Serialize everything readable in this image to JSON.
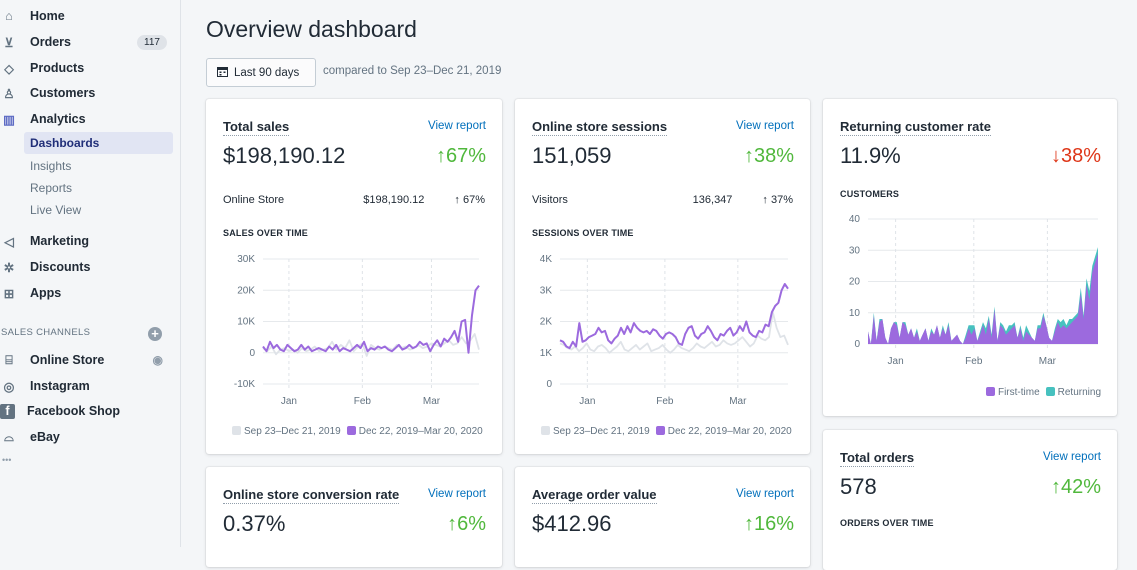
{
  "sidebar": {
    "items": [
      {
        "label": "Home",
        "icon": "home-icon"
      },
      {
        "label": "Orders",
        "icon": "orders-icon",
        "badge": "117"
      },
      {
        "label": "Products",
        "icon": "tag-icon"
      },
      {
        "label": "Customers",
        "icon": "person-icon"
      },
      {
        "label": "Analytics",
        "icon": "bar-chart-icon"
      }
    ],
    "analytics_sub": [
      "Dashboards",
      "Insights",
      "Reports",
      "Live View"
    ],
    "items2": [
      {
        "label": "Marketing",
        "icon": "megaphone-icon"
      },
      {
        "label": "Discounts",
        "icon": "discount-icon"
      },
      {
        "label": "Apps",
        "icon": "apps-icon"
      }
    ],
    "sales_channels_label": "SALES CHANNELS",
    "channels": [
      {
        "label": "Online Store",
        "icon": "store-icon"
      },
      {
        "label": "Instagram",
        "icon": "instagram-icon"
      },
      {
        "label": "Facebook Shop",
        "icon": "facebook-icon"
      },
      {
        "label": "eBay",
        "icon": "bag-icon"
      }
    ],
    "more": "•••"
  },
  "header": {
    "title": "Overview dashboard",
    "date_range": "Last 90 days",
    "compared": "compared to Sep 23–Dec 21, 2019"
  },
  "colors": {
    "accent": "#9c6ade",
    "previous": "#dfe3e8",
    "returning": "#47c1bf",
    "up": "#50b83c",
    "down": "#de3618",
    "link": "#006fbb"
  },
  "view_report": "View report",
  "legend": {
    "previous": "Sep 23–Dec 21, 2019",
    "current": "Dec 22, 2019–Mar 20, 2020"
  },
  "x_ticks": [
    "Jan",
    "Feb",
    "Mar"
  ],
  "cards": {
    "total_sales": {
      "title": "Total sales",
      "value": "$198,190.12",
      "change": "↑67%",
      "row_label": "Online Store",
      "row_value": "$198,190.12",
      "row_change": "↑ 67%",
      "chart_label": "SALES OVER TIME"
    },
    "sessions": {
      "title": "Online store sessions",
      "value": "151,059",
      "change": "↑38%",
      "row_label": "Visitors",
      "row_value": "136,347",
      "row_change": "↑ 37%",
      "chart_label": "SESSIONS OVER TIME"
    },
    "returning": {
      "title": "Returning customer rate",
      "value": "11.9%",
      "change": "↓38%",
      "chart_label": "CUSTOMERS",
      "legend_first": "First-time",
      "legend_returning": "Returning"
    },
    "total_orders": {
      "title": "Total orders",
      "value": "578",
      "change": "↑42%",
      "chart_label": "ORDERS OVER TIME"
    },
    "conversion": {
      "title": "Online store conversion rate",
      "value": "0.37%",
      "change": "↑6%"
    },
    "aov": {
      "title": "Average order value",
      "value": "$412.96",
      "change": "↑16%"
    }
  },
  "chart_data": [
    {
      "type": "line",
      "title": "SALES OVER TIME",
      "x_ticks": [
        "Jan",
        "Feb",
        "Mar"
      ],
      "y_ticks": [
        "30K",
        "20K",
        "10K",
        "0",
        "-10K"
      ],
      "ylim": [
        -10000,
        30000
      ],
      "series": [
        {
          "name": "Sep 23–Dec 21, 2019",
          "values": [
            1500,
            500,
            2000,
            -500,
            1000,
            1500,
            500,
            1000,
            0,
            1500,
            500,
            1000,
            2000,
            500,
            1000,
            1500,
            3500,
            1000,
            2500,
            1500,
            4000,
            500,
            2000,
            3000,
            -1000,
            2500,
            1500,
            1000,
            2000,
            1500,
            1000,
            2500,
            1500,
            2000,
            1000,
            1500,
            2500,
            1500,
            2000,
            3000,
            2500,
            2000,
            3000,
            4000,
            2500,
            3000,
            5000,
            3000,
            4000,
            6000,
            1000
          ]
        },
        {
          "name": "Dec 22, 2019–Mar 20, 2020",
          "values": [
            2000,
            500,
            3500,
            1500,
            2500,
            1000,
            500,
            2500,
            1500,
            500,
            1000,
            2500,
            1000,
            2000,
            500,
            1000,
            1500,
            1000,
            500,
            2000,
            1000,
            2500,
            500,
            1500,
            1000,
            500,
            1500,
            2500,
            1500,
            3500,
            500,
            1500,
            1000,
            2000,
            1500,
            2000,
            1000,
            500,
            1500,
            2500,
            1000,
            1500,
            2500,
            1500,
            2000,
            3500,
            2500,
            3000,
            500,
            2500,
            4000,
            2000,
            4500,
            3500,
            5000,
            7000,
            3500,
            10000,
            10500,
            0,
            12000,
            20000,
            21500
          ]
        }
      ]
    },
    {
      "type": "line",
      "title": "SESSIONS OVER TIME",
      "x_ticks": [
        "Jan",
        "Feb",
        "Mar"
      ],
      "y_ticks": [
        "4K",
        "3K",
        "2K",
        "1K",
        "0"
      ],
      "ylim": [
        0,
        4000
      ],
      "series": [
        {
          "name": "Sep 23–Dec 21, 2019",
          "values": [
            1300,
            1250,
            1150,
            1100,
            1200,
            1050,
            1150,
            1300,
            1100,
            1050,
            1200,
            1250,
            1150,
            1000,
            1100,
            1200,
            1350,
            1100,
            1050,
            1150,
            1250,
            1100,
            1200,
            1300,
            1050,
            1100,
            1150,
            1250,
            1100,
            1000,
            1100,
            1250,
            1150,
            1100,
            1050,
            1150,
            1300,
            1200,
            1150,
            1250,
            1350,
            1200,
            1250,
            1400,
            1300,
            1250,
            1300,
            1400,
            1500,
            1350,
            1200,
            1300,
            1550,
            1450,
            1400,
            1500,
            2300,
            1800,
            1500,
            1550,
            1250
          ]
        },
        {
          "name": "Dec 22, 2019–Mar 20, 2020",
          "values": [
            1400,
            1350,
            1200,
            1150,
            1350,
            1200,
            1950,
            1350,
            1400,
            1500,
            1550,
            1600,
            1800,
            1650,
            1700,
            1400,
            1300,
            1450,
            1550,
            1800,
            1600,
            1850,
            1650,
            1950,
            1800,
            1700,
            1650,
            1700,
            1600,
            1750,
            1700,
            1550,
            1450,
            1600,
            1650,
            1600,
            1500,
            1300,
            1250,
            1600,
            1800,
            1850,
            1550,
            1450,
            1600,
            1650,
            1850,
            1700,
            1500,
            1400,
            1600,
            1550,
            1700,
            1800,
            1550,
            1650,
            1850,
            1700,
            2000,
            1650,
            1550,
            1500,
            1700,
            1650,
            1900,
            1850,
            2300,
            2500,
            2600,
            3000,
            3200,
            3050
          ]
        }
      ]
    },
    {
      "type": "area",
      "stacked": true,
      "title": "CUSTOMERS",
      "x_ticks": [
        "Jan",
        "Feb",
        "Mar"
      ],
      "y_ticks": [
        "40",
        "30",
        "20",
        "10",
        "0"
      ],
      "ylim": [
        0,
        40
      ],
      "series": [
        {
          "name": "First-time",
          "values": [
            4,
            0,
            9,
            1,
            7,
            8,
            2,
            0,
            5,
            7,
            6,
            2,
            7,
            6,
            3,
            5,
            2,
            4,
            1,
            3,
            5,
            1,
            4,
            3,
            6,
            2,
            5,
            3,
            6,
            1,
            2,
            3,
            1,
            0,
            2,
            5,
            3,
            5,
            1,
            3,
            6,
            3,
            8,
            2,
            11,
            1,
            6,
            5,
            3,
            4,
            5,
            6,
            2,
            5,
            1,
            4,
            3,
            2,
            1,
            5,
            5,
            9,
            6,
            2,
            1,
            4,
            7,
            5,
            6,
            5,
            6,
            7,
            8,
            9,
            16,
            8,
            19,
            14,
            23,
            26,
            29
          ]
        },
        {
          "name": "Returning",
          "values": [
            0,
            0,
            1,
            0,
            1,
            0,
            0,
            0,
            0,
            0,
            1,
            0,
            0,
            1,
            0,
            0,
            0,
            1,
            0,
            0,
            0,
            0,
            1,
            0,
            0,
            0,
            1,
            0,
            1,
            0,
            0,
            0,
            0,
            0,
            1,
            1,
            3,
            1,
            0,
            1,
            1,
            2,
            1,
            1,
            1,
            0,
            1,
            1,
            1,
            2,
            1,
            1,
            0,
            1,
            1,
            2,
            1,
            0,
            0,
            1,
            1,
            1,
            0,
            0,
            0,
            1,
            1,
            2,
            2,
            1,
            2,
            1,
            1,
            1,
            2,
            1,
            2,
            3,
            2,
            2,
            2
          ]
        }
      ]
    }
  ]
}
